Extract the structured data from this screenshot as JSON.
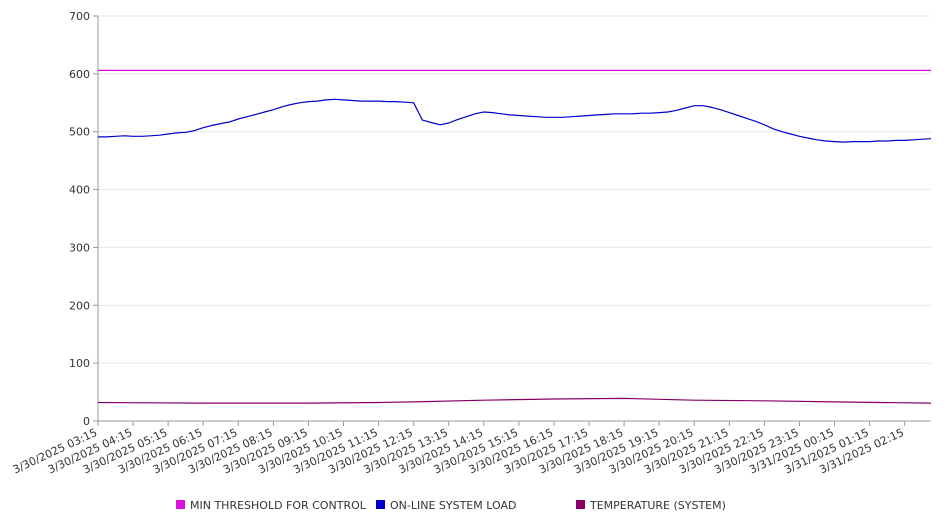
{
  "chart_data": {
    "type": "line",
    "title": "",
    "xlabel": "",
    "ylabel": "",
    "ylim": [
      0,
      700
    ],
    "yticks": [
      0,
      100,
      200,
      300,
      400,
      500,
      600,
      700
    ],
    "grid": "horizontal",
    "legend_position": "bottom",
    "x_tick_labels": [
      "3/30/2025 03:15",
      "3/30/2025 04:15",
      "3/30/2025 05:15",
      "3/30/2025 06:15",
      "3/30/2025 07:15",
      "3/30/2025 08:15",
      "3/30/2025 09:15",
      "3/30/2025 10:15",
      "3/30/2025 11:15",
      "3/30/2025 12:15",
      "3/30/2025 13:15",
      "3/30/2025 14:15",
      "3/30/2025 15:15",
      "3/30/2025 16:15",
      "3/30/2025 17:15",
      "3/30/2025 18:15",
      "3/30/2025 19:15",
      "3/30/2025 20:15",
      "3/30/2025 21:15",
      "3/30/2025 22:15",
      "3/30/2025 23:15",
      "3/31/2025 00:15",
      "3/31/2025 01:15",
      "3/31/2025 02:15"
    ],
    "x_range": [
      "3/30/2025 03:15",
      "3/31/2025 03:00"
    ],
    "series": [
      {
        "name": "MIN THRESHOLD FOR CONTROL",
        "color": "#dd11dd",
        "x": [
          "3/30/2025 03:15",
          "3/31/2025 03:00"
        ],
        "y": [
          606,
          606
        ]
      },
      {
        "name": "ON-LINE SYSTEM LOAD",
        "color": "#0000cc",
        "x": [
          "3/30/2025 03:15",
          "3/30/2025 03:30",
          "3/30/2025 03:45",
          "3/30/2025 04:00",
          "3/30/2025 04:15",
          "3/30/2025 04:30",
          "3/30/2025 04:45",
          "3/30/2025 05:00",
          "3/30/2025 05:15",
          "3/30/2025 05:30",
          "3/30/2025 05:45",
          "3/30/2025 06:00",
          "3/30/2025 06:15",
          "3/30/2025 06:30",
          "3/30/2025 06:45",
          "3/30/2025 07:00",
          "3/30/2025 07:15",
          "3/30/2025 07:30",
          "3/30/2025 07:45",
          "3/30/2025 08:00",
          "3/30/2025 08:15",
          "3/30/2025 08:30",
          "3/30/2025 08:45",
          "3/30/2025 09:00",
          "3/30/2025 09:15",
          "3/30/2025 09:30",
          "3/30/2025 09:45",
          "3/30/2025 10:00",
          "3/30/2025 10:15",
          "3/30/2025 10:30",
          "3/30/2025 10:45",
          "3/30/2025 11:00",
          "3/30/2025 11:15",
          "3/30/2025 11:30",
          "3/30/2025 11:45",
          "3/30/2025 12:00",
          "3/30/2025 12:15",
          "3/30/2025 12:30",
          "3/30/2025 12:45",
          "3/30/2025 13:00",
          "3/30/2025 13:15",
          "3/30/2025 13:30",
          "3/30/2025 13:45",
          "3/30/2025 14:00",
          "3/30/2025 14:15",
          "3/30/2025 14:30",
          "3/30/2025 14:45",
          "3/30/2025 15:00",
          "3/30/2025 15:15",
          "3/30/2025 15:30",
          "3/30/2025 15:45",
          "3/30/2025 16:00",
          "3/30/2025 16:15",
          "3/30/2025 16:30",
          "3/30/2025 16:45",
          "3/30/2025 17:00",
          "3/30/2025 17:15",
          "3/30/2025 17:30",
          "3/30/2025 17:45",
          "3/30/2025 18:00",
          "3/30/2025 18:15",
          "3/30/2025 18:30",
          "3/30/2025 18:45",
          "3/30/2025 19:00",
          "3/30/2025 19:15",
          "3/30/2025 19:30",
          "3/30/2025 19:45",
          "3/30/2025 20:00",
          "3/30/2025 20:15",
          "3/30/2025 20:30",
          "3/30/2025 20:45",
          "3/30/2025 21:00",
          "3/30/2025 21:15",
          "3/30/2025 21:30",
          "3/30/2025 21:45",
          "3/30/2025 22:00",
          "3/30/2025 22:15",
          "3/30/2025 22:30",
          "3/30/2025 22:45",
          "3/30/2025 23:00",
          "3/30/2025 23:15",
          "3/30/2025 23:30",
          "3/30/2025 23:45",
          "3/31/2025 00:00",
          "3/31/2025 00:15",
          "3/31/2025 00:30",
          "3/31/2025 00:45",
          "3/31/2025 01:00",
          "3/31/2025 01:15",
          "3/31/2025 01:30",
          "3/31/2025 01:45",
          "3/31/2025 02:00",
          "3/31/2025 02:15",
          "3/31/2025 02:30",
          "3/31/2025 02:45",
          "3/31/2025 03:00"
        ],
        "y": [
          491,
          491,
          492,
          493,
          492,
          492,
          493,
          494,
          496,
          498,
          499,
          502,
          507,
          511,
          514,
          517,
          522,
          526,
          530,
          534,
          538,
          543,
          547,
          550,
          552,
          553,
          555,
          556,
          555,
          554,
          553,
          553,
          553,
          552,
          552,
          551,
          550,
          520,
          516,
          512,
          515,
          521,
          526,
          531,
          534,
          533,
          531,
          529,
          528,
          527,
          526,
          525,
          525,
          525,
          526,
          527,
          528,
          529,
          530,
          531,
          531,
          531,
          532,
          532,
          533,
          534,
          537,
          541,
          545,
          545,
          542,
          538,
          533,
          528,
          523,
          518,
          512,
          505,
          500,
          496,
          492,
          489,
          486,
          484,
          483,
          482,
          483,
          483,
          483,
          484,
          484,
          485,
          485,
          486,
          487,
          488
        ]
      },
      {
        "name": "TEMPERATURE (SYSTEM)",
        "color": "#880066",
        "x": [
          "3/30/2025 03:15",
          "3/30/2025 06:15",
          "3/30/2025 09:15",
          "3/30/2025 11:15",
          "3/30/2025 12:15",
          "3/30/2025 14:15",
          "3/30/2025 16:15",
          "3/30/2025 18:15",
          "3/30/2025 20:15",
          "3/30/2025 22:15",
          "3/31/2025 00:15",
          "3/31/2025 03:00"
        ],
        "y": [
          32,
          31,
          31,
          32,
          33,
          36,
          38,
          39,
          36,
          35,
          33,
          31
        ]
      }
    ]
  }
}
